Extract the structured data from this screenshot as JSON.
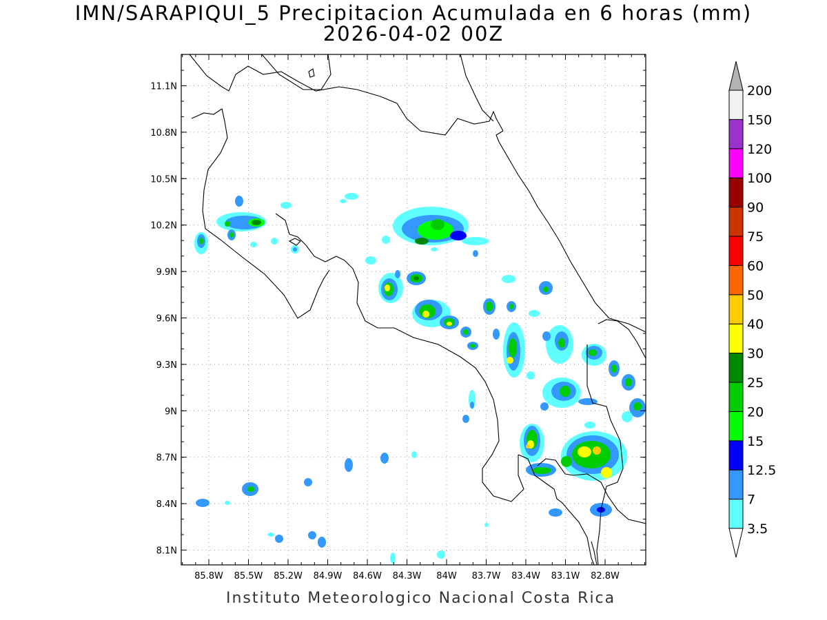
{
  "map": {
    "title": "IMN/SARAPIQUI_5 Precipitacion Acumulada en 6 horas (mm)",
    "subtitle": "2026-04-02 00Z",
    "credit": "Instituto Meteorologico Nacional Costa Rica",
    "lat_labels": [
      "11.1N",
      "10.8N",
      "10.5N",
      "10.2N",
      "9.9N",
      "9.6N",
      "9.3N",
      "9N",
      "8.7N",
      "8.4N",
      "8.1N"
    ],
    "lon_labels": [
      "85.8W",
      "85.5W",
      "85.2W",
      "84.9W",
      "84.6W",
      "84.3W",
      "84W",
      "83.7W",
      "83.4W",
      "83.1W",
      "82.8W"
    ]
  },
  "colorbar": {
    "levels": [
      "3.5",
      "7",
      "12.5",
      "15",
      "20",
      "25",
      "30",
      "40",
      "50",
      "60",
      "75",
      "90",
      "100",
      "120",
      "150",
      "200"
    ],
    "colors": [
      "#60ffff",
      "#3399ff",
      "#0000ff",
      "#00ff00",
      "#00cc00",
      "#008800",
      "#ffff00",
      "#ffcc00",
      "#ff6600",
      "#ff0000",
      "#cc3300",
      "#990000",
      "#ff00ff",
      "#9933cc",
      "#f2f2f2",
      "#b3b3b3"
    ],
    "under_color": "#ffffff",
    "over_color": "#b3b3b3"
  }
}
